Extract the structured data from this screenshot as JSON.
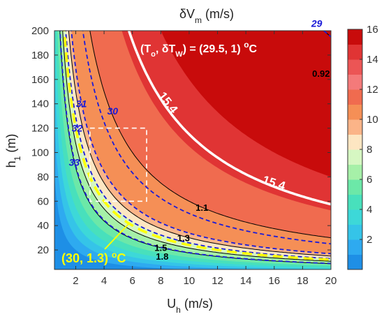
{
  "chart_data": {
    "type": "contour",
    "title": "δV_m (m/s)",
    "xlabel": "U_h (m/s)",
    "ylabel": "h_1 (m)",
    "xlim": [
      0.5,
      20
    ],
    "ylim": [
      4,
      200
    ],
    "x_ticks": [
      2,
      4,
      6,
      8,
      10,
      12,
      14,
      16,
      18,
      20
    ],
    "y_ticks": [
      20,
      40,
      60,
      80,
      100,
      120,
      140,
      160,
      180,
      200
    ],
    "colorbar": {
      "range": [
        0,
        16
      ],
      "ticks": [
        2,
        4,
        6,
        8,
        10,
        12,
        14,
        16
      ],
      "levels": [
        {
          "from": 0,
          "to": 1,
          "color": "#1e8fe6"
        },
        {
          "from": 1,
          "to": 2,
          "color": "#2eaaf0"
        },
        {
          "from": 2,
          "to": 3,
          "color": "#35c4e8"
        },
        {
          "from": 3,
          "to": 4,
          "color": "#3dd8d8"
        },
        {
          "from": 4,
          "to": 5,
          "color": "#48e0bc"
        },
        {
          "from": 5,
          "to": 6,
          "color": "#6ce8a8"
        },
        {
          "from": 6,
          "to": 7,
          "color": "#a6f0a8"
        },
        {
          "from": 7,
          "to": 8,
          "color": "#d6f7c2"
        },
        {
          "from": 8,
          "to": 9,
          "color": "#fde6c2"
        },
        {
          "from": 9,
          "to": 10,
          "color": "#fbb488"
        },
        {
          "from": 10,
          "to": 11,
          "color": "#f58f56"
        },
        {
          "from": 11,
          "to": 12,
          "color": "#f06b4f"
        },
        {
          "from": 12,
          "to": 13,
          "color": "#f47a7a"
        },
        {
          "from": 13,
          "to": 14,
          "color": "#ec5555"
        },
        {
          "from": 14,
          "to": 15,
          "color": "#e03434"
        },
        {
          "from": 15,
          "to": 16,
          "color": "#c80b0b"
        }
      ]
    },
    "fill_contours": [
      {
        "level": 1,
        "k": 40,
        "color": "#2eaaf0"
      },
      {
        "level": 2,
        "k": 62,
        "color": "#35c4e8"
      },
      {
        "level": 3,
        "k": 85,
        "color": "#3dd8d8"
      },
      {
        "level": 4,
        "k": 110,
        "color": "#48e0bc"
      },
      {
        "level": 5,
        "k": 140,
        "color": "#6ce8a8"
      },
      {
        "level": 6,
        "k": 175,
        "color": "#a6f0a8"
      },
      {
        "level": 7,
        "k": 215,
        "color": "#d6f7c2"
      },
      {
        "level": 8,
        "k": 260,
        "color": "#fde6c2"
      },
      {
        "level": 9,
        "k": 300,
        "color": "#fbb488"
      },
      {
        "level": 10,
        "k": 340,
        "color": "#f58f56"
      },
      {
        "level": 12,
        "k": 600,
        "color": "#f06b4f"
      },
      {
        "level": 14,
        "k": 1050,
        "color": "#e03434"
      },
      {
        "level": 15,
        "k": 1600,
        "color": "#c80b0b"
      }
    ],
    "blue_dashed_contours": [
      {
        "label": "33",
        "k": 178
      },
      {
        "label": "32",
        "k": 258
      },
      {
        "label": "31",
        "k": 338
      },
      {
        "label": "30",
        "k": 500
      },
      {
        "label": "29",
        "k": 3900
      }
    ],
    "black_contours": [
      {
        "label": "1.8",
        "k": 175
      },
      {
        "label": "1.5",
        "k": 215
      },
      {
        "label": "1.3",
        "k": 300
      },
      {
        "label": "1.1",
        "k": 600
      },
      {
        "label": "0.92",
        "k": 3900
      }
    ],
    "white_contour": {
      "label": "15.4",
      "k": 1150
    },
    "yellow_dashed_contour": {
      "k": 240
    },
    "white_dashed_box": {
      "x": [
        3,
        7
      ],
      "y": [
        60,
        120
      ]
    },
    "annotations": {
      "top_right": "(T_o, δT_W) = (29.5, 1) °C",
      "bottom_left": "(30, 1.3) °C"
    }
  }
}
